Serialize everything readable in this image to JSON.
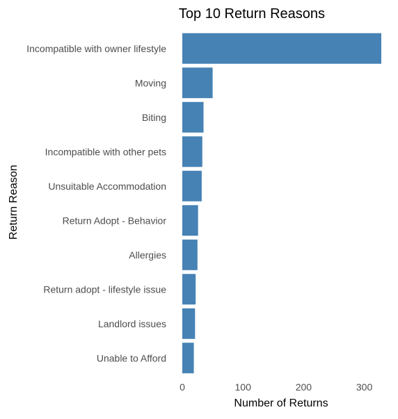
{
  "chart_data": {
    "type": "bar",
    "orientation": "horizontal",
    "title": "Top 10 Return Reasons",
    "xlabel": "Number of Returns",
    "ylabel": "Return Reason",
    "categories": [
      "Incompatible with owner lifestyle",
      "Moving",
      "Biting",
      "Incompatible with other pets",
      "Unsuitable Accommodation",
      "Return Adopt - Behavior",
      "Allergies",
      "Return adopt - lifestyle issue",
      "Landlord issues",
      "Unable to Afford"
    ],
    "values": [
      328,
      50,
      35,
      33,
      32,
      26,
      25,
      22,
      21,
      19
    ],
    "xlim": [
      0,
      328
    ],
    "xticks": [
      0,
      100,
      200,
      300
    ],
    "grid": false,
    "legend": "none",
    "bar_color": "#4682B4"
  }
}
